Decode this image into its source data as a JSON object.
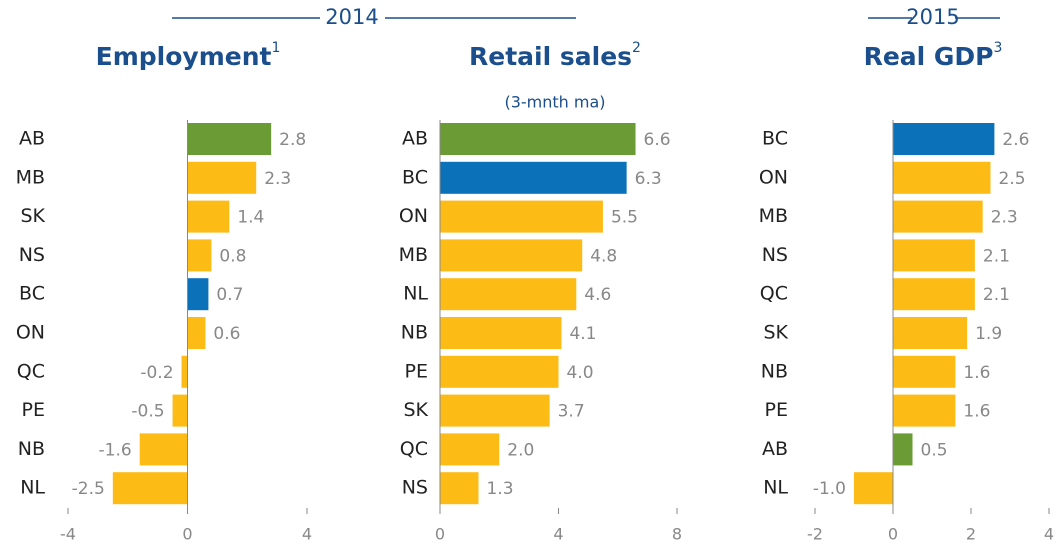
{
  "headers": [
    "2014",
    "2015"
  ],
  "chart_data": [
    {
      "type": "bar",
      "orientation": "horizontal",
      "title": "Employment",
      "title_sup": "1",
      "categories": [
        "AB",
        "MB",
        "SK",
        "NS",
        "BC",
        "ON",
        "QC",
        "PE",
        "NB",
        "NL"
      ],
      "values": [
        2.8,
        2.3,
        1.4,
        0.8,
        0.7,
        0.6,
        -0.2,
        -0.5,
        -1.6,
        -2.5
      ],
      "colors": [
        "#6a9b35",
        "#fdbb16",
        "#fdbb16",
        "#fdbb16",
        "#0b72b9",
        "#fdbb16",
        "#fdbb16",
        "#fdbb16",
        "#fdbb16",
        "#fdbb16"
      ],
      "xlim": [
        -4,
        4
      ],
      "xticks": [
        -4,
        0,
        4
      ]
    },
    {
      "type": "bar",
      "orientation": "horizontal",
      "title": "Retail sales",
      "title_sup": "2",
      "subtitle": "(3-mnth ma)",
      "categories": [
        "AB",
        "BC",
        "ON",
        "MB",
        "NL",
        "NB",
        "PE",
        "SK",
        "QC",
        "NS"
      ],
      "values": [
        6.6,
        6.3,
        5.5,
        4.8,
        4.6,
        4.1,
        4.0,
        3.7,
        2.0,
        1.3
      ],
      "value_labels": [
        "6.6",
        "6.3",
        "5.5",
        "4.8",
        "4.6",
        "4.1",
        "4.0",
        "3.7",
        "2.0",
        "1.3"
      ],
      "colors": [
        "#6a9b35",
        "#0b72b9",
        "#fdbb16",
        "#fdbb16",
        "#fdbb16",
        "#fdbb16",
        "#fdbb16",
        "#fdbb16",
        "#fdbb16",
        "#fdbb16"
      ],
      "xlim": [
        0,
        8
      ],
      "xticks": [
        0,
        4,
        8
      ]
    },
    {
      "type": "bar",
      "orientation": "horizontal",
      "title": "Real GDP",
      "title_sup": "3",
      "categories": [
        "BC",
        "ON",
        "MB",
        "NS",
        "QC",
        "SK",
        "NB",
        "PE",
        "AB",
        "NL"
      ],
      "values": [
        2.6,
        2.5,
        2.3,
        2.1,
        2.1,
        1.9,
        1.6,
        1.6,
        0.5,
        -1.0
      ],
      "value_labels": [
        "2.6",
        "2.5",
        "2.3",
        "2.1",
        "2.1",
        "1.9",
        "1.6",
        "1.6",
        "0.5",
        "-1.0"
      ],
      "colors": [
        "#0b72b9",
        "#fdbb16",
        "#fdbb16",
        "#fdbb16",
        "#fdbb16",
        "#fdbb16",
        "#fdbb16",
        "#fdbb16",
        "#6a9b35",
        "#fdbb16"
      ],
      "xlim": [
        -2,
        4
      ],
      "xticks": [
        -2,
        0,
        2,
        4
      ]
    }
  ]
}
